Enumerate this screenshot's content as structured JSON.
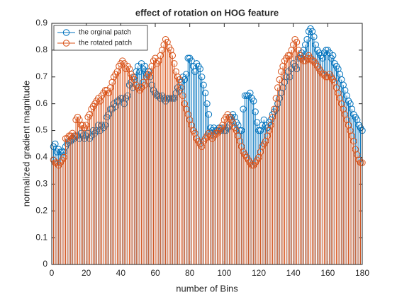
{
  "chart_data": {
    "type": "stem",
    "title": "effect of rotation on HOG feature",
    "xlabel": "number of Bins",
    "ylabel": "normalized gradient magnitude",
    "xlim": [
      0,
      180
    ],
    "xticks": [
      0,
      20,
      40,
      60,
      80,
      100,
      120,
      140,
      160,
      180
    ],
    "ylim": [
      0,
      0.9
    ],
    "yticks": [
      0,
      0.1,
      0.2,
      0.3,
      0.4,
      0.5,
      0.6,
      0.7,
      0.8,
      0.9
    ],
    "legend": "top-left",
    "x": [
      1,
      2,
      3,
      4,
      5,
      6,
      7,
      8,
      9,
      10,
      11,
      12,
      13,
      14,
      15,
      16,
      17,
      18,
      19,
      20,
      21,
      22,
      23,
      24,
      25,
      26,
      27,
      28,
      29,
      30,
      31,
      32,
      33,
      34,
      35,
      36,
      37,
      38,
      39,
      40,
      41,
      42,
      43,
      44,
      45,
      46,
      47,
      48,
      49,
      50,
      51,
      52,
      53,
      54,
      55,
      56,
      57,
      58,
      59,
      60,
      61,
      62,
      63,
      64,
      65,
      66,
      67,
      68,
      69,
      70,
      71,
      72,
      73,
      74,
      75,
      76,
      77,
      78,
      79,
      80,
      81,
      82,
      83,
      84,
      85,
      86,
      87,
      88,
      89,
      90,
      91,
      92,
      93,
      94,
      95,
      96,
      97,
      98,
      99,
      100,
      101,
      102,
      103,
      104,
      105,
      106,
      107,
      108,
      109,
      110,
      111,
      112,
      113,
      114,
      115,
      116,
      117,
      118,
      119,
      120,
      121,
      122,
      123,
      124,
      125,
      126,
      127,
      128,
      129,
      130,
      131,
      132,
      133,
      134,
      135,
      136,
      137,
      138,
      139,
      140,
      141,
      142,
      143,
      144,
      145,
      146,
      147,
      148,
      149,
      150,
      151,
      152,
      153,
      154,
      155,
      156,
      157,
      158,
      159,
      160,
      161,
      162,
      163,
      164,
      165,
      166,
      167,
      168,
      169,
      170,
      171,
      172,
      173,
      174,
      175,
      176,
      177,
      178,
      179,
      180
    ],
    "series": [
      {
        "name": "the orginal patch",
        "color": "#0072BD",
        "values": [
          0.44,
          0.45,
          0.42,
          0.43,
          0.42,
          0.42,
          0.42,
          0.44,
          0.45,
          0.46,
          0.46,
          0.47,
          0.47,
          0.48,
          0.48,
          0.47,
          0.49,
          0.48,
          0.47,
          0.48,
          0.49,
          0.47,
          0.48,
          0.5,
          0.49,
          0.5,
          0.52,
          0.5,
          0.52,
          0.51,
          0.52,
          0.55,
          0.56,
          0.58,
          0.58,
          0.6,
          0.59,
          0.61,
          0.61,
          0.62,
          0.62,
          0.6,
          0.62,
          0.63,
          0.67,
          0.68,
          0.66,
          0.7,
          0.72,
          0.74,
          0.72,
          0.75,
          0.73,
          0.74,
          0.71,
          0.72,
          0.7,
          0.67,
          0.65,
          0.64,
          0.63,
          0.63,
          0.62,
          0.63,
          0.62,
          0.61,
          0.62,
          0.62,
          0.62,
          0.62,
          0.62,
          0.64,
          0.66,
          0.65,
          0.68,
          0.7,
          0.69,
          0.71,
          0.77,
          0.77,
          0.76,
          0.74,
          0.72,
          0.75,
          0.74,
          0.73,
          0.7,
          0.67,
          0.64,
          0.6,
          0.56,
          0.51,
          0.5,
          0.51,
          0.5,
          0.5,
          0.51,
          0.5,
          0.51,
          0.5,
          0.5,
          0.51,
          0.52,
          0.55,
          0.56,
          0.55,
          0.53,
          0.52,
          0.5,
          0.5,
          0.58,
          0.63,
          0.63,
          0.63,
          0.64,
          0.62,
          0.61,
          0.57,
          0.53,
          0.5,
          0.5,
          0.52,
          0.54,
          0.52,
          0.51,
          0.53,
          0.54,
          0.56,
          0.57,
          0.58,
          0.6,
          0.62,
          0.64,
          0.66,
          0.68,
          0.7,
          0.72,
          0.7,
          0.73,
          0.75,
          0.74,
          0.73,
          0.77,
          0.77,
          0.79,
          0.8,
          0.82,
          0.84,
          0.87,
          0.88,
          0.87,
          0.85,
          0.82,
          0.8,
          0.79,
          0.78,
          0.77,
          0.79,
          0.8,
          0.8,
          0.79,
          0.77,
          0.78,
          0.75,
          0.74,
          0.73,
          0.71,
          0.69,
          0.67,
          0.65,
          0.63,
          0.61,
          0.6,
          0.58,
          0.56,
          0.55,
          0.54,
          0.52,
          0.51,
          0.5
        ]
      },
      {
        "name": "the rotated patch",
        "color": "#D95319",
        "values": [
          0.39,
          0.38,
          0.38,
          0.37,
          0.38,
          0.39,
          0.4,
          0.47,
          0.47,
          0.48,
          0.48,
          0.49,
          0.48,
          0.54,
          0.55,
          0.54,
          0.52,
          0.52,
          0.51,
          0.52,
          0.55,
          0.56,
          0.58,
          0.59,
          0.6,
          0.61,
          0.62,
          0.61,
          0.63,
          0.64,
          0.65,
          0.65,
          0.64,
          0.66,
          0.68,
          0.7,
          0.71,
          0.72,
          0.74,
          0.75,
          0.76,
          0.75,
          0.73,
          0.74,
          0.73,
          0.71,
          0.7,
          0.69,
          0.67,
          0.66,
          0.65,
          0.66,
          0.68,
          0.67,
          0.7,
          0.71,
          0.72,
          0.74,
          0.76,
          0.77,
          0.75,
          0.76,
          0.78,
          0.8,
          0.82,
          0.84,
          0.83,
          0.81,
          0.8,
          0.78,
          0.75,
          0.72,
          0.7,
          0.69,
          0.66,
          0.63,
          0.6,
          0.58,
          0.56,
          0.54,
          0.52,
          0.5,
          0.49,
          0.47,
          0.46,
          0.45,
          0.44,
          0.46,
          0.47,
          0.48,
          0.49,
          0.48,
          0.47,
          0.48,
          0.49,
          0.49,
          0.5,
          0.51,
          0.52,
          0.54,
          0.55,
          0.56,
          0.55,
          0.54,
          0.53,
          0.51,
          0.5,
          0.48,
          0.46,
          0.44,
          0.42,
          0.41,
          0.4,
          0.39,
          0.38,
          0.37,
          0.37,
          0.38,
          0.39,
          0.4,
          0.42,
          0.44,
          0.45,
          0.46,
          0.48,
          0.5,
          0.52,
          0.55,
          0.58,
          0.62,
          0.66,
          0.69,
          0.72,
          0.74,
          0.76,
          0.77,
          0.78,
          0.78,
          0.8,
          0.82,
          0.84,
          0.83,
          0.8,
          0.78,
          0.77,
          0.76,
          0.76,
          0.77,
          0.78,
          0.77,
          0.76,
          0.76,
          0.75,
          0.74,
          0.73,
          0.72,
          0.71,
          0.71,
          0.7,
          0.7,
          0.71,
          0.7,
          0.69,
          0.68,
          0.66,
          0.64,
          0.62,
          0.6,
          0.58,
          0.56,
          0.54,
          0.52,
          0.5,
          0.48,
          0.46,
          0.43,
          0.41,
          0.39,
          0.38,
          0.38
        ]
      }
    ]
  }
}
